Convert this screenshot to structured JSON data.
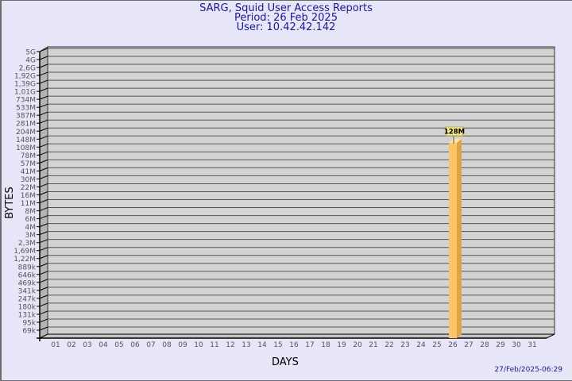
{
  "header": {
    "title": "SARG, Squid User Access Reports",
    "period": "Period: 26 Feb 2025",
    "user": "User: 10.42.42.142"
  },
  "footer": {
    "timestamp": "27/Feb/2025-06:29"
  },
  "colors": {
    "background": "#e6e6f8",
    "wall": "#d3d3d3",
    "bar_front": "#fdc56a",
    "bar_side": "#e0a345",
    "label_box": "#f5e98c",
    "title": "#1a1a8c"
  },
  "chart_data": {
    "type": "bar",
    "title": "SARG, Squid User Access Reports",
    "xlabel": "DAYS",
    "ylabel": "BYTES",
    "y_scale": "log",
    "grid": true,
    "style": "3d",
    "y_ticks": [
      "69k",
      "95k",
      "131k",
      "180k",
      "247k",
      "341k",
      "469k",
      "646k",
      "889k",
      "1,22M",
      "1,69M",
      "2,3M",
      "3M",
      "4M",
      "6M",
      "8M",
      "11M",
      "16M",
      "22M",
      "30M",
      "41M",
      "57M",
      "78M",
      "108M",
      "148M",
      "204M",
      "281M",
      "387M",
      "533M",
      "734M",
      "1,01G",
      "1,39G",
      "1,92G",
      "2,6G",
      "4G",
      "5G"
    ],
    "categories": [
      "01",
      "02",
      "03",
      "04",
      "05",
      "06",
      "07",
      "08",
      "09",
      "10",
      "11",
      "12",
      "13",
      "14",
      "15",
      "16",
      "17",
      "18",
      "19",
      "20",
      "21",
      "22",
      "23",
      "24",
      "25",
      "26",
      "27",
      "28",
      "29",
      "30",
      "31"
    ],
    "bars": [
      {
        "day": "26",
        "value": 128000000,
        "label": "128M"
      }
    ]
  }
}
